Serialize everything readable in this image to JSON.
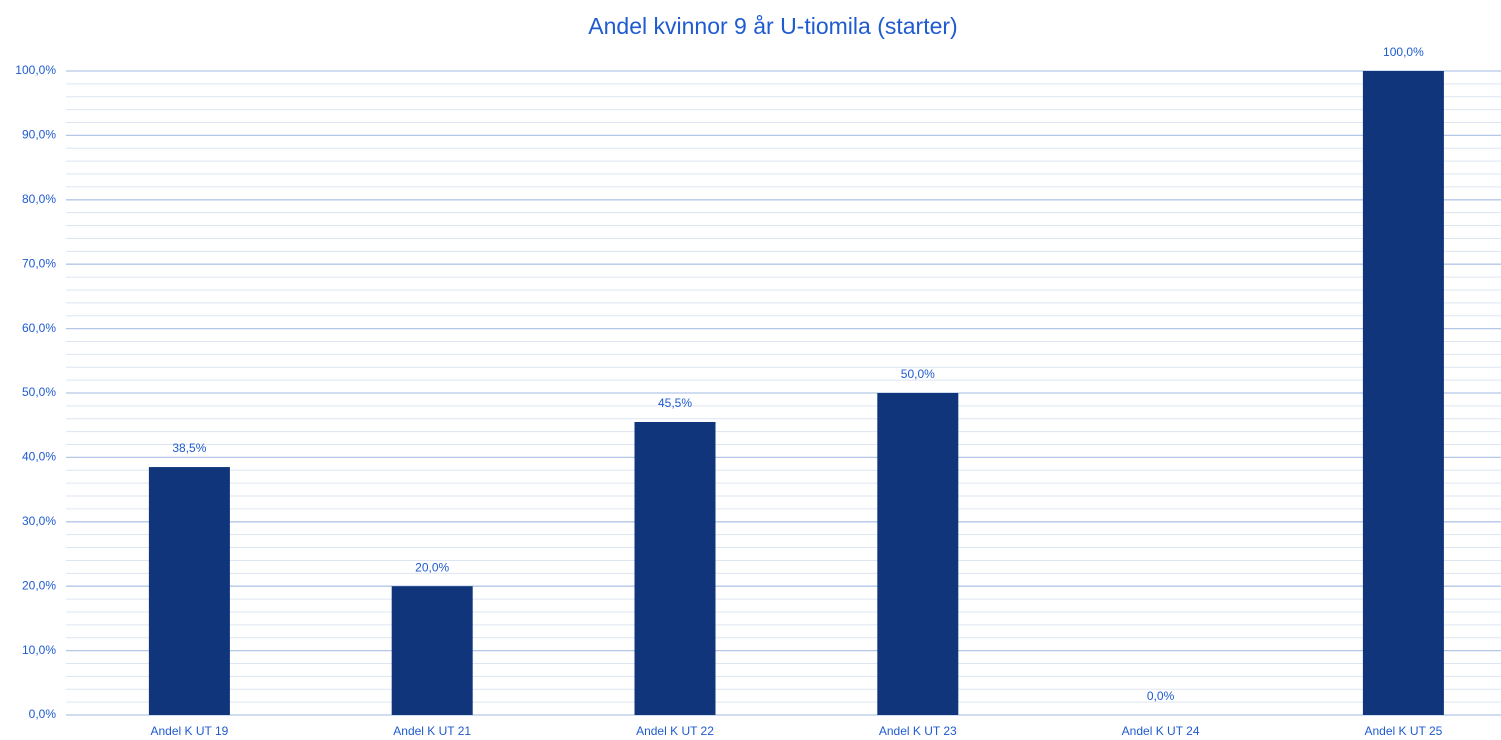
{
  "chart_data": {
    "type": "bar",
    "title": "Andel kvinnor 9 år U-tiomila (starter)",
    "categories": [
      "Andel K UT 19",
      "Andel K UT 21",
      "Andel K UT 22",
      "Andel K UT 23",
      "Andel K UT 24",
      "Andel K UT 25"
    ],
    "values": [
      38.5,
      20,
      45.5,
      50,
      0,
      100
    ],
    "value_labels": [
      "38,5%",
      "20,0%",
      "45,5%",
      "50,0%",
      "0,0%",
      "100,0%"
    ],
    "color": "#10357a",
    "ylim": [
      0,
      100
    ],
    "yticks": [
      {
        "value": 0,
        "label": "0,0%"
      },
      {
        "value": 10,
        "label": "10,0%"
      },
      {
        "value": 20,
        "label": "20,0%"
      },
      {
        "value": 30,
        "label": "30,0%"
      },
      {
        "value": 40,
        "label": "40,0%"
      },
      {
        "value": 50,
        "label": "50,0%"
      },
      {
        "value": 60,
        "label": "60,0%"
      },
      {
        "value": 70,
        "label": "70,0%"
      },
      {
        "value": 80,
        "label": "80,0%"
      },
      {
        "value": 90,
        "label": "90,0%"
      },
      {
        "value": 100,
        "label": "100,0%"
      }
    ],
    "yminorticks": [
      2,
      4,
      6,
      8,
      12,
      14,
      16,
      18,
      22,
      24,
      26,
      28,
      32,
      34,
      36,
      38,
      42,
      44,
      46,
      48,
      52,
      54,
      56,
      58,
      62,
      64,
      66,
      68,
      72,
      74,
      76,
      78,
      82,
      84,
      86,
      88,
      92,
      94,
      96,
      98
    ],
    "grid": true
  }
}
